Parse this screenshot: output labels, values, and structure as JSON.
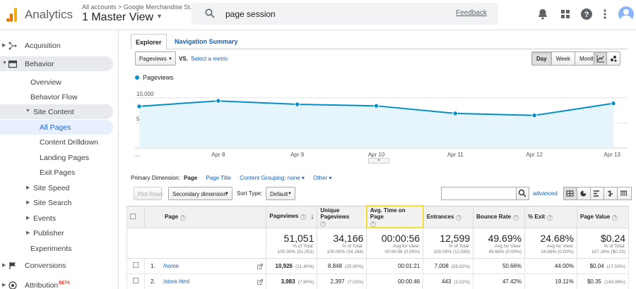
{
  "header": {
    "app_name": "Analytics",
    "breadcrumb": "All accounts > Google Merchandise St...",
    "view_name": "1 Master View",
    "search_value": "page session",
    "feedback_label": "Feedback"
  },
  "sidebar": {
    "items": [
      {
        "label": "Acquisition"
      },
      {
        "label": "Behavior"
      },
      {
        "label": "Overview"
      },
      {
        "label": "Behavior Flow"
      },
      {
        "label": "Site Content"
      },
      {
        "label": "All Pages"
      },
      {
        "label": "Content Drilldown"
      },
      {
        "label": "Landing Pages"
      },
      {
        "label": "Exit Pages"
      },
      {
        "label": "Site Speed"
      },
      {
        "label": "Site Search"
      },
      {
        "label": "Events"
      },
      {
        "label": "Publisher"
      },
      {
        "label": "Experiments"
      },
      {
        "label": "Conversions"
      },
      {
        "label": "Attribution",
        "badge": "BETA"
      }
    ]
  },
  "tabs": {
    "explorer": "Explorer",
    "navigation_summary": "Navigation Summary"
  },
  "chart_controls": {
    "metric": "Pageviews",
    "vs": "VS.",
    "select_metric": "Select a metric",
    "day": "Day",
    "week": "Week",
    "month": "Month",
    "active_period": "Day"
  },
  "chart_data": {
    "type": "area",
    "series": [
      {
        "name": "Pageviews",
        "values": [
          8300,
          9400,
          8700,
          8400,
          6900,
          6500,
          8900
        ]
      }
    ],
    "categories": [
      "...",
      "Apr 8",
      "Apr 9",
      "Apr 10",
      "Apr 11",
      "Apr 12",
      "Apr 13"
    ],
    "yticks": [
      "10,000",
      "5,000"
    ],
    "ylim": [
      0,
      12500
    ],
    "color": "#058dc7",
    "fill": "#e6f4fb",
    "grid": true
  },
  "dimensions": {
    "primary_label": "Primary Dimension:",
    "page": "Page",
    "page_title": "Page Title",
    "content_grouping": "Content Grouping: none",
    "other": "Other"
  },
  "toolbar": {
    "plot_rows": "Plot Rows",
    "secondary_dimension": "Secondary dimension",
    "sort_type_label": "Sort Type:",
    "sort_type_value": "Default",
    "advanced": "advanced"
  },
  "table": {
    "headers": [
      "Page",
      "Pageviews",
      "Unique Pageviews",
      "Avg. Time on Page",
      "Entrances",
      "Bounce Rate",
      "% Exit",
      "Page Value"
    ],
    "totals": [
      {
        "value": "51,051",
        "line1": "% of Total:",
        "line2": "100.00% (51,051)"
      },
      {
        "value": "34,166",
        "line1": "% of Total:",
        "line2": "100.00% (34,166)"
      },
      {
        "value": "00:00:56",
        "line1": "Avg for View:",
        "line2": "00:00:56 (0.00%)"
      },
      {
        "value": "12,599",
        "line1": "% of Total:",
        "line2": "100.00% (12,599)"
      },
      {
        "value": "49.69%",
        "line1": "Avg for View:",
        "line2": "49.69% (0.00%)"
      },
      {
        "value": "24.68%",
        "line1": "Avg for View:",
        "line2": "24.68% (0.00%)"
      },
      {
        "value": "$0.24",
        "line1": "% of Total:",
        "line2": "107.26% ($0.23)"
      }
    ],
    "rows": [
      {
        "num": "1.",
        "page": "/home",
        "pageviews": "10,926",
        "pageviews_pct": "(21.40%)",
        "unique": "8,848",
        "unique_pct": "(25.90%)",
        "avg_time": "00:01:21",
        "entrances": "7,008",
        "entrances_pct": "(55.62%)",
        "bounce": "50.66%",
        "exit": "44.00%",
        "value": "$0.04",
        "value_pct": "(17.50%)"
      },
      {
        "num": "2.",
        "page": "/store.html",
        "pageviews": "3,983",
        "pageviews_pct": "(7.80%)",
        "unique": "2,397",
        "unique_pct": "(7.02%)",
        "avg_time": "00:00:46",
        "entrances": "443",
        "entrances_pct": "(3.52%)",
        "bounce": "47.42%",
        "exit": "19.11%",
        "value": "$0.35",
        "value_pct": "(143.08%)"
      }
    ]
  }
}
